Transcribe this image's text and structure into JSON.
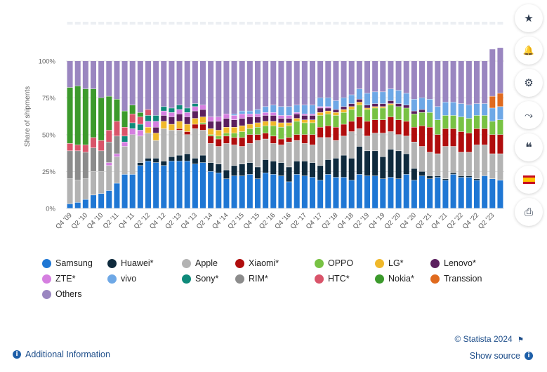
{
  "chart_data": {
    "type": "bar",
    "stacked": true,
    "percent_stacked": true,
    "ylabel": "Share of shipments",
    "ylim": [
      0,
      100
    ],
    "yticks": [
      "0%",
      "25%",
      "50%",
      "75%",
      "100%"
    ],
    "x_tick_labels": [
      "Q4 '09",
      "Q2 '10",
      "Q4 '10",
      "Q2 '11",
      "Q4 '11",
      "Q2 '12",
      "Q4 '12",
      "Q2 '13",
      "Q4 '13",
      "Q2 '14",
      "Q4 '14",
      "Q2 '15",
      "Q4 '15",
      "Q2 '16",
      "Q4 '16",
      "Q2 '17",
      "Q4 '17",
      "Q2 '18",
      "Q4 '18",
      "Q2 '19",
      "Q4 '19",
      "Q2 '20",
      "Q4 '20",
      "Q2 '21",
      "Q4 '21",
      "Q2 '22",
      "Q4 '22",
      "Q2 '23"
    ],
    "categories": [
      "Q4 '09",
      "Q1 '10",
      "Q2 '10",
      "Q3 '10",
      "Q4 '10",
      "Q1 '11",
      "Q2 '11",
      "Q3 '11",
      "Q4 '11",
      "Q1 '12",
      "Q2 '12",
      "Q3 '12",
      "Q4 '12",
      "Q1 '13",
      "Q2 '13",
      "Q3 '13",
      "Q4 '13",
      "Q1 '14",
      "Q2 '14",
      "Q3 '14",
      "Q4 '14",
      "Q1 '15",
      "Q2 '15",
      "Q3 '15",
      "Q4 '15",
      "Q1 '16",
      "Q2 '16",
      "Q3 '16",
      "Q4 '16",
      "Q1 '17",
      "Q2 '17",
      "Q3 '17",
      "Q4 '17",
      "Q1 '18",
      "Q2 '18",
      "Q3 '18",
      "Q4 '18",
      "Q1 '19",
      "Q2 '19",
      "Q3 '19",
      "Q4 '19",
      "Q1 '20",
      "Q2 '20",
      "Q3 '20",
      "Q4 '20",
      "Q1 '21",
      "Q2 '21",
      "Q3 '21",
      "Q4 '21",
      "Q1 '22",
      "Q2 '22",
      "Q3 '22",
      "Q4 '22",
      "Q1 '23",
      "Q2 '23",
      "Q3 '23"
    ],
    "series": [
      {
        "name": "Samsung",
        "color": "#1f77d4",
        "values": [
          3,
          4,
          6,
          9,
          10,
          12,
          17,
          23,
          23,
          29,
          32,
          31,
          29,
          32,
          32,
          32,
          30,
          31,
          25,
          24,
          20,
          22,
          22,
          23,
          20,
          24,
          23,
          22,
          18,
          23,
          22,
          21,
          19,
          23,
          21,
          21,
          19,
          23,
          22,
          22,
          20,
          21,
          20,
          23,
          19,
          22,
          20,
          21,
          19,
          23,
          21,
          21,
          19,
          22,
          20,
          19
        ]
      },
      {
        "name": "Huawei*",
        "color": "#0f2a3d",
        "values": [
          0,
          0,
          0,
          0,
          0,
          0,
          0,
          0,
          0,
          2,
          2,
          3,
          3,
          3,
          4,
          5,
          4,
          5,
          6,
          6,
          6,
          7,
          8,
          8,
          8,
          9,
          9,
          9,
          10,
          9,
          10,
          10,
          10,
          10,
          13,
          15,
          15,
          19,
          17,
          17,
          15,
          19,
          19,
          14,
          8,
          3,
          2,
          1,
          1,
          1,
          1,
          1,
          1,
          0,
          0,
          0
        ]
      },
      {
        "name": "Apple",
        "color": "#b3b3b3",
        "values": [
          17,
          15,
          14,
          16,
          15,
          17,
          18,
          19,
          27,
          18,
          17,
          12,
          22,
          18,
          17,
          13,
          20,
          17,
          13,
          12,
          18,
          14,
          12,
          13,
          18,
          14,
          12,
          12,
          17,
          14,
          12,
          12,
          19,
          15,
          12,
          13,
          18,
          12,
          10,
          12,
          16,
          12,
          11,
          12,
          18,
          17,
          16,
          15,
          22,
          18,
          16,
          16,
          23,
          21,
          17,
          18
        ]
      },
      {
        "name": "Xiaomi*",
        "color": "#b00d0d",
        "values": [
          0,
          0,
          0,
          0,
          0,
          0,
          0,
          0,
          0,
          0,
          0,
          0,
          0,
          0,
          1,
          2,
          3,
          4,
          5,
          5,
          5,
          5,
          6,
          6,
          4,
          4,
          5,
          4,
          3,
          4,
          6,
          7,
          7,
          8,
          9,
          8,
          7,
          8,
          10,
          9,
          9,
          10,
          10,
          10,
          10,
          14,
          17,
          13,
          12,
          12,
          14,
          13,
          11,
          11,
          13,
          13
        ]
      },
      {
        "name": "OPPO",
        "color": "#78c244",
        "values": [
          0,
          0,
          0,
          0,
          0,
          0,
          0,
          0,
          0,
          0,
          0,
          0,
          0,
          0,
          0,
          0,
          0,
          1,
          1,
          2,
          2,
          3,
          4,
          4,
          5,
          5,
          7,
          8,
          8,
          9,
          8,
          8,
          8,
          8,
          8,
          8,
          8,
          8,
          8,
          8,
          8,
          8,
          9,
          9,
          9,
          9,
          10,
          10,
          9,
          9,
          10,
          10,
          9,
          9,
          9,
          10
        ]
      },
      {
        "name": "LG*",
        "color": "#f0b82a",
        "values": [
          0,
          0,
          0,
          0,
          0,
          0,
          0,
          0,
          0,
          0,
          4,
          5,
          5,
          4,
          5,
          5,
          4,
          4,
          4,
          4,
          4,
          4,
          4,
          3,
          3,
          3,
          3,
          3,
          2,
          2,
          2,
          2,
          2,
          2,
          2,
          2,
          2,
          2,
          1,
          1,
          1,
          1,
          0,
          0,
          0,
          0,
          0,
          0,
          0,
          0,
          0,
          0,
          0,
          0,
          0,
          0
        ]
      },
      {
        "name": "Lenovo*",
        "color": "#5b1f5e",
        "values": [
          0,
          0,
          0,
          0,
          0,
          0,
          0,
          0,
          0,
          0,
          0,
          4,
          4,
          5,
          5,
          5,
          5,
          5,
          5,
          6,
          6,
          5,
          5,
          5,
          4,
          4,
          4,
          3,
          3,
          3,
          3,
          3,
          3,
          2,
          2,
          2,
          2,
          2,
          2,
          2,
          2,
          2,
          2,
          2,
          2,
          2,
          0,
          0,
          0,
          0,
          0,
          0,
          0,
          0,
          0,
          0
        ]
      },
      {
        "name": "ZTE*",
        "color": "#d57fe0",
        "values": [
          0,
          0,
          0,
          0,
          0,
          2,
          2,
          3,
          4,
          4,
          4,
          4,
          3,
          3,
          3,
          3,
          3,
          3,
          3,
          3,
          3,
          3,
          3,
          2,
          2,
          2,
          2,
          2,
          2,
          1,
          1,
          1,
          1,
          1,
          0,
          0,
          0,
          0,
          0,
          0,
          0,
          0,
          0,
          0,
          0,
          0,
          0,
          0,
          0,
          0,
          0,
          0,
          0,
          0,
          0,
          0
        ]
      },
      {
        "name": "vivo",
        "color": "#6ea8e6",
        "values": [
          0,
          0,
          0,
          0,
          0,
          0,
          0,
          0,
          0,
          0,
          0,
          0,
          0,
          0,
          0,
          0,
          0,
          0,
          0,
          0,
          0,
          1,
          2,
          2,
          3,
          4,
          5,
          6,
          6,
          5,
          6,
          6,
          6,
          6,
          6,
          6,
          6,
          7,
          8,
          8,
          8,
          8,
          9,
          8,
          8,
          8,
          9,
          9,
          9,
          9,
          9,
          9,
          8,
          8,
          9,
          9
        ]
      },
      {
        "name": "Sony*",
        "color": "#0e8a7a",
        "values": [
          0,
          0,
          0,
          0,
          0,
          0,
          0,
          4,
          4,
          4,
          4,
          4,
          3,
          3,
          3,
          3,
          2,
          0,
          0,
          0,
          0,
          0,
          0,
          0,
          0,
          0,
          0,
          0,
          0,
          0,
          0,
          0,
          0,
          0,
          0,
          0,
          0,
          0,
          0,
          0,
          0,
          0,
          0,
          0,
          0,
          0,
          0,
          0,
          0,
          0,
          0,
          0,
          0,
          0,
          0,
          0
        ]
      },
      {
        "name": "RIM*",
        "color": "#8c8c8c",
        "values": [
          19,
          20,
          18,
          16,
          14,
          14,
          12,
          0,
          0,
          0,
          0,
          0,
          0,
          0,
          0,
          0,
          0,
          0,
          0,
          0,
          0,
          0,
          0,
          0,
          0,
          0,
          0,
          0,
          0,
          0,
          0,
          0,
          0,
          0,
          0,
          0,
          0,
          0,
          0,
          0,
          0,
          0,
          0,
          0,
          0,
          0,
          0,
          0,
          0,
          0,
          0,
          0,
          0,
          0,
          0,
          0
        ]
      },
      {
        "name": "HTC*",
        "color": "#d9546a",
        "values": [
          5,
          4,
          5,
          7,
          7,
          8,
          10,
          6,
          6,
          5,
          4,
          0,
          0,
          0,
          0,
          0,
          0,
          0,
          0,
          0,
          0,
          0,
          0,
          0,
          0,
          0,
          0,
          0,
          0,
          0,
          0,
          0,
          0,
          0,
          0,
          0,
          0,
          0,
          0,
          0,
          0,
          0,
          0,
          0,
          0,
          0,
          0,
          0,
          0,
          0,
          0,
          0,
          0,
          0,
          0,
          0
        ]
      },
      {
        "name": "Nokia*",
        "color": "#3c9a2c",
        "values": [
          38,
          40,
          38,
          33,
          29,
          23,
          15,
          11,
          6,
          3,
          0,
          0,
          0,
          0,
          0,
          0,
          0,
          0,
          0,
          0,
          0,
          0,
          0,
          0,
          0,
          0,
          0,
          0,
          0,
          0,
          0,
          0,
          0,
          0,
          0,
          0,
          0,
          0,
          0,
          0,
          0,
          0,
          0,
          0,
          0,
          0,
          0,
          0,
          0,
          0,
          0,
          0,
          0,
          0,
          0,
          0
        ]
      },
      {
        "name": "Transsion",
        "color": "#e06a1e",
        "values": [
          0,
          0,
          0,
          0,
          0,
          0,
          0,
          0,
          0,
          0,
          0,
          0,
          0,
          0,
          0,
          0,
          0,
          0,
          0,
          0,
          0,
          0,
          0,
          0,
          0,
          0,
          0,
          0,
          0,
          0,
          0,
          0,
          0,
          0,
          0,
          0,
          0,
          0,
          0,
          0,
          0,
          0,
          0,
          0,
          0,
          0,
          0,
          0,
          0,
          0,
          0,
          0,
          0,
          0,
          8,
          9
        ]
      },
      {
        "name": "Others",
        "color": "#9a86c0",
        "values": [
          18,
          17,
          19,
          19,
          25,
          24,
          26,
          34,
          30,
          35,
          33,
          37,
          31,
          32,
          30,
          32,
          29,
          30,
          38,
          38,
          36,
          36,
          34,
          34,
          33,
          31,
          30,
          31,
          31,
          30,
          30,
          30,
          25,
          25,
          27,
          25,
          23,
          19,
          22,
          21,
          21,
          19,
          20,
          22,
          26,
          25,
          26,
          31,
          28,
          28,
          29,
          30,
          29,
          29,
          32,
          31
        ]
      }
    ],
    "grid": "horizontal",
    "legend_position": "bottom-left"
  },
  "legend_items": [
    "Samsung",
    "Huawei*",
    "Apple",
    "Xiaomi*",
    "OPPO",
    "LG*",
    "Lenovo*",
    "ZTE*",
    "vivo",
    "Sony*",
    "RIM*",
    "HTC*",
    "Nokia*",
    "Transsion",
    "Others"
  ],
  "toolbar": {
    "icons": [
      "star-icon",
      "bell-icon",
      "gear-icon",
      "share-icon",
      "quote-icon",
      "flag-es-icon",
      "print-icon"
    ],
    "glyphs": [
      "★",
      "🔔",
      "⚙",
      "⤳",
      "❝",
      "",
      "⎙"
    ]
  },
  "footer": {
    "credit": "© Statista 2024",
    "additional_info": "Additional Information",
    "show_source": "Show source"
  }
}
